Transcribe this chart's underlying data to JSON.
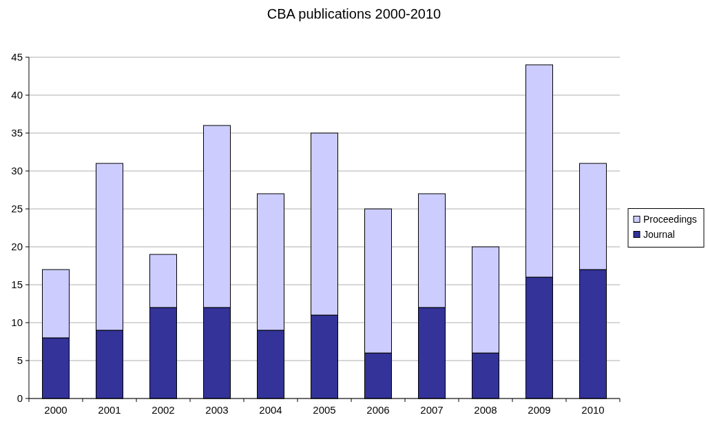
{
  "chart_data": {
    "type": "bar",
    "title": "CBA publications 2000-2010",
    "categories": [
      "2000",
      "2001",
      "2002",
      "2003",
      "2004",
      "2005",
      "2006",
      "2007",
      "2008",
      "2009",
      "2010"
    ],
    "stacked": true,
    "series": [
      {
        "name": "Journal",
        "color": "#333399",
        "values": [
          8,
          9,
          12,
          12,
          9,
          11,
          6,
          12,
          6,
          16,
          17
        ]
      },
      {
        "name": "Proceedings",
        "color": "#ccccff",
        "values": [
          9,
          22,
          7,
          24,
          18,
          24,
          19,
          15,
          14,
          28,
          14
        ]
      }
    ],
    "ylim": [
      0,
      45
    ],
    "yticks": [
      0,
      5,
      10,
      15,
      20,
      25,
      30,
      35,
      40,
      45
    ],
    "grid": "y",
    "legend": "right"
  }
}
